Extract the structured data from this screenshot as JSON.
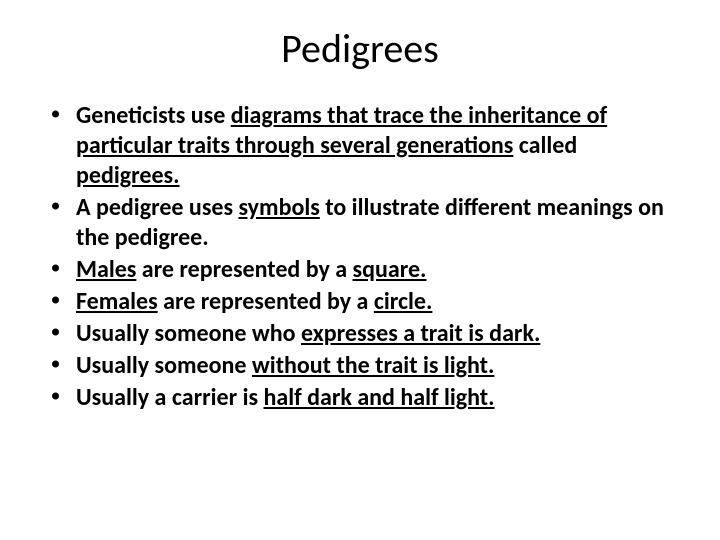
{
  "title": "Pedigrees",
  "title_fontsize": 40,
  "title_fontweight": 400,
  "title_align": "center",
  "body_fontsize": 24,
  "body_fontweight": 700,
  "bullet_color": "#000000",
  "background_color": "#ffffff",
  "text_color": "#000000",
  "bullets": [
    {
      "plain_before": "Geneticists use ",
      "u1": "diagrams that trace the inheritance of particular traits through several generations",
      "mid1": " called ",
      "u2": "pedigrees.",
      "tail": ""
    },
    {
      "plain_before": "A pedigree uses ",
      "u1": "symbols",
      "mid1": " to illustrate different meanings on the pedigree.",
      "u2": "",
      "tail": ""
    },
    {
      "plain_before": "",
      "u1": "Males",
      "mid1": " are represented by a ",
      "u2": "square.",
      "tail": ""
    },
    {
      "plain_before": "",
      "u1": "Females",
      "mid1": " are represented by a ",
      "u2": "circle.",
      "tail": ""
    },
    {
      "plain_before": "Usually someone who ",
      "u1": "expresses a trait is dark.",
      "mid1": "",
      "u2": "",
      "tail": ""
    },
    {
      "plain_before": "Usually someone ",
      "u1": "without the trait is light.",
      "mid1": "",
      "u2": "",
      "tail": ""
    },
    {
      "plain_before": "Usually a carrier is ",
      "u1": "half dark and half light.",
      "mid1": "",
      "u2": "",
      "tail": ""
    }
  ]
}
